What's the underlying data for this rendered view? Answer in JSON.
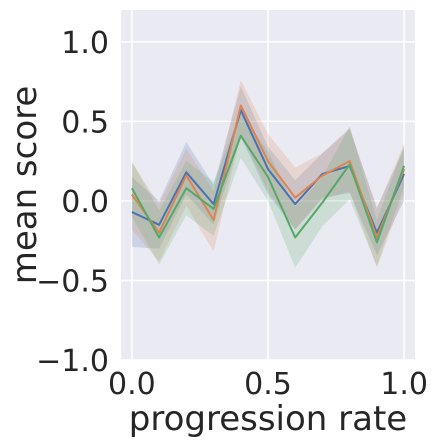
{
  "chart_data": {
    "type": "line",
    "title": "",
    "xlabel": "progression rate",
    "ylabel": "mean score",
    "xlim": [
      -0.04,
      1.04
    ],
    "ylim": [
      -1.0,
      1.2
    ],
    "xticks": [
      0.0,
      0.5,
      1.0
    ],
    "xtick_labels": [
      "0.0",
      "0.5",
      "1.0"
    ],
    "yticks": [
      -1.0,
      -0.5,
      0.0,
      0.5,
      1.0
    ],
    "ytick_labels": [
      "−1.0",
      "−0.5",
      "0.0",
      "0.5",
      "1.0"
    ],
    "grid": true,
    "background": "#eaeaf2",
    "grid_color": "#ffffff",
    "x": [
      0.0,
      0.1,
      0.2,
      0.3,
      0.4,
      0.5,
      0.6,
      0.7,
      0.8,
      0.9,
      1.0
    ],
    "series": [
      {
        "color": "#4c72b0",
        "values": [
          -0.07,
          -0.15,
          0.18,
          -0.02,
          0.57,
          0.2,
          -0.02,
          0.17,
          0.22,
          -0.2,
          0.17
        ],
        "lower": [
          -0.29,
          -0.3,
          0.04,
          -0.15,
          0.4,
          0.04,
          -0.18,
          0.02,
          0.05,
          -0.34,
          0.0
        ],
        "upper": [
          0.15,
          0.0,
          0.37,
          0.1,
          0.72,
          0.34,
          0.13,
          0.3,
          0.45,
          -0.04,
          0.33
        ]
      },
      {
        "color": "#dd8452",
        "values": [
          0.04,
          -0.2,
          0.16,
          -0.12,
          0.6,
          0.25,
          0.02,
          0.16,
          0.25,
          -0.23,
          0.2
        ],
        "lower": [
          -0.18,
          -0.38,
          -0.03,
          -0.32,
          0.42,
          0.06,
          -0.18,
          0.01,
          0.06,
          -0.42,
          0.04
        ],
        "upper": [
          0.24,
          -0.02,
          0.33,
          0.06,
          0.76,
          0.42,
          0.21,
          0.3,
          0.46,
          -0.05,
          0.36
        ]
      },
      {
        "color": "#55a868",
        "values": [
          0.08,
          -0.23,
          0.08,
          -0.05,
          0.41,
          0.15,
          -0.23,
          -0.01,
          0.23,
          -0.26,
          0.22
        ],
        "lower": [
          -0.1,
          -0.4,
          -0.09,
          -0.22,
          0.27,
          0.0,
          -0.42,
          -0.16,
          0.01,
          -0.41,
          0.09
        ],
        "upper": [
          0.25,
          -0.06,
          0.25,
          0.12,
          0.56,
          0.31,
          -0.04,
          0.15,
          0.47,
          -0.12,
          0.35
        ]
      }
    ]
  }
}
